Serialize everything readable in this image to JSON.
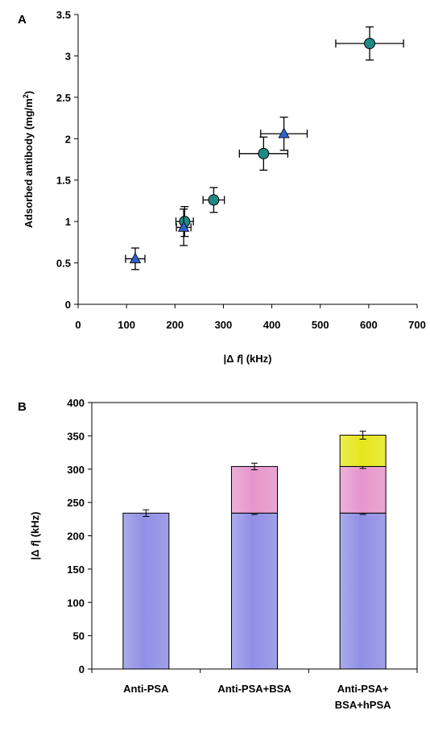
{
  "chart_data": [
    {
      "panel": "A",
      "type": "scatter",
      "xlabel_prefix": "|Δ ",
      "xlabel_var": "f",
      "xlabel_suffix": "| (kHz)",
      "ylabel": "Adsorbed antibody (mg/m",
      "ylabel_sup": "2",
      "ylabel_end": ")",
      "xlim": [
        0,
        700
      ],
      "ylim": [
        0,
        3.5
      ],
      "xticks": [
        "0",
        "100",
        "200",
        "300",
        "400",
        "500",
        "600",
        "700"
      ],
      "yticks": [
        "0",
        "0.5",
        "1",
        "1.5",
        "2",
        "2.5",
        "3",
        "3.5"
      ],
      "grid": false,
      "series": [
        {
          "marker": "circle",
          "color": "#1f8a84",
          "points": [
            {
              "x": 220,
              "y": 1.0,
              "xerr": 18,
              "yerr": 0.18
            },
            {
              "x": 280,
              "y": 1.26,
              "xerr": 22,
              "yerr": 0.15
            },
            {
              "x": 383,
              "y": 1.82,
              "xerr": 50,
              "yerr": 0.2
            },
            {
              "x": 602,
              "y": 3.15,
              "xerr": 70,
              "yerr": 0.2
            }
          ]
        },
        {
          "marker": "triangle",
          "color": "#2f5fc8",
          "points": [
            {
              "x": 118,
              "y": 0.55,
              "xerr": 20,
              "yerr": 0.13
            },
            {
              "x": 218,
              "y": 0.93,
              "xerr": 15,
              "yerr": 0.22
            },
            {
              "x": 425,
              "y": 2.06,
              "xerr": 48,
              "yerr": 0.2
            }
          ]
        }
      ]
    },
    {
      "panel": "B",
      "type": "bar",
      "stacked": true,
      "ylabel_prefix": "|Δ ",
      "ylabel_var": "f",
      "ylabel_suffix": "| (kHz)",
      "ylim": [
        0,
        400
      ],
      "yticks": [
        "0",
        "50",
        "100",
        "150",
        "200",
        "250",
        "300",
        "350",
        "400"
      ],
      "grid": false,
      "categories": [
        {
          "lines": [
            "Anti-PSA"
          ]
        },
        {
          "lines": [
            "Anti-PSA+BSA"
          ]
        },
        {
          "lines": [
            "Anti-PSA+",
            "BSA+hPSA"
          ]
        }
      ],
      "series": [
        {
          "color": "#8f8fe6",
          "values": [
            234,
            234,
            234
          ],
          "errors": [
            5,
            2,
            2
          ]
        },
        {
          "color": "#e696cc",
          "values": [
            0,
            70,
            70
          ],
          "errors": [
            0,
            5,
            3
          ]
        },
        {
          "color": "#e6e61c",
          "values": [
            0,
            0,
            47
          ],
          "errors": [
            0,
            0,
            6
          ]
        }
      ]
    }
  ]
}
